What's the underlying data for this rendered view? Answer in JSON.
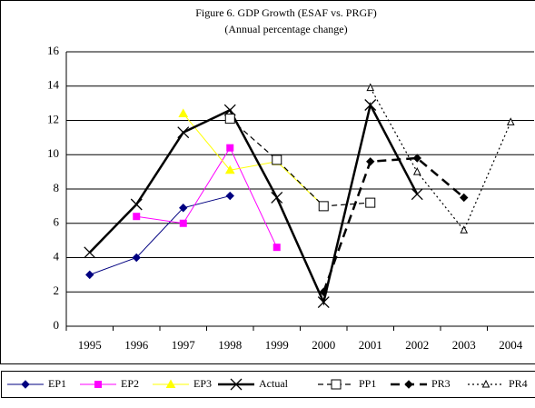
{
  "chart_data": {
    "type": "line",
    "title": "Figure 6. GDP Growth (ESAF vs. PRGF)",
    "subtitle": "(Annual percentage change)",
    "categories": [
      "1995",
      "1996",
      "1997",
      "1998",
      "1999",
      "2000",
      "2001",
      "2002",
      "2003",
      "2004"
    ],
    "ylim": [
      0,
      16
    ],
    "yticks": [
      0,
      2,
      4,
      6,
      8,
      10,
      12,
      14,
      16
    ],
    "grid": true,
    "legend": "bottom",
    "series": [
      {
        "name": "EP1",
        "color": "#000080",
        "dash": "solid",
        "width": 1,
        "marker": "diamond",
        "values": [
          3.0,
          4.0,
          6.9,
          7.6,
          null,
          null,
          null,
          null,
          null,
          null
        ]
      },
      {
        "name": "EP2",
        "color": "#ff00ff",
        "dash": "solid",
        "width": 1,
        "marker": "square",
        "values": [
          null,
          6.4,
          6.0,
          10.4,
          4.6,
          null,
          null,
          null,
          null,
          null
        ]
      },
      {
        "name": "EP3",
        "color": "#ffff00",
        "dash": "solid",
        "width": 1,
        "marker": "triangle",
        "values": [
          null,
          null,
          12.4,
          9.1,
          9.6,
          7.0,
          null,
          null,
          null,
          null
        ]
      },
      {
        "name": "Actual",
        "color": "#000000",
        "dash": "solid",
        "width": 2.5,
        "marker": "x",
        "values": [
          4.3,
          7.1,
          11.3,
          12.6,
          7.5,
          1.4,
          12.9,
          7.7,
          null,
          null
        ]
      },
      {
        "name": "PP1",
        "color": "#000000",
        "dash": "dashed",
        "width": 1.2,
        "marker": "open-square",
        "values": [
          null,
          null,
          null,
          12.1,
          9.7,
          7.0,
          7.2,
          null,
          null,
          null
        ]
      },
      {
        "name": "PR3",
        "color": "#000000",
        "dash": "longdash",
        "width": 2.5,
        "marker": "diamond",
        "values": [
          null,
          null,
          null,
          null,
          null,
          2.0,
          9.6,
          9.8,
          7.5,
          null
        ]
      },
      {
        "name": "PR4",
        "color": "#000000",
        "dash": "dotted",
        "width": 1.2,
        "marker": "open-triangle",
        "values": [
          null,
          null,
          null,
          null,
          null,
          null,
          13.9,
          9.0,
          5.6,
          11.9
        ]
      }
    ]
  }
}
